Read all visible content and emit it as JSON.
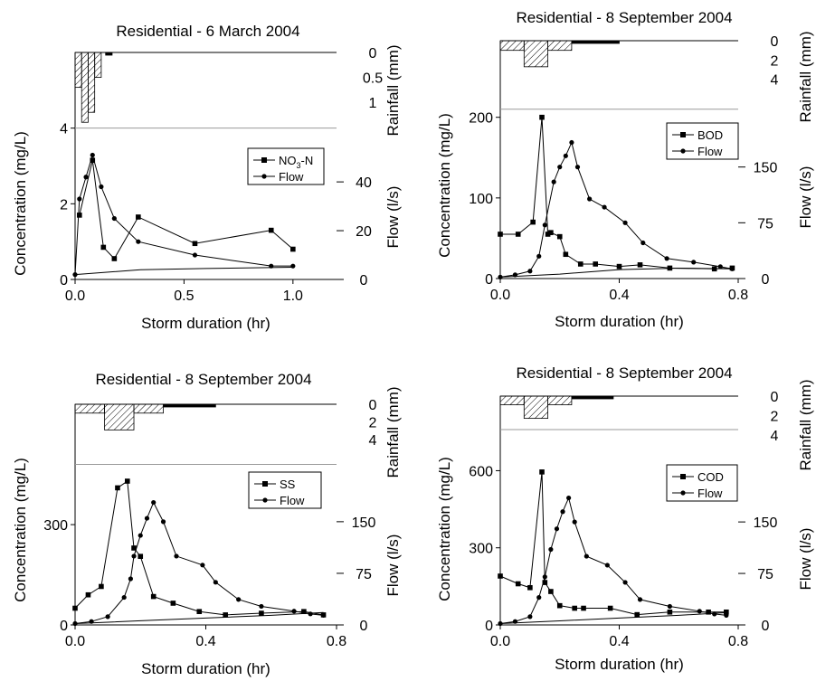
{
  "chart_data": [
    {
      "type": "line",
      "title": "Residential - 6 March 2004",
      "xlabel": "Storm duration (hr)",
      "ylabel_left": "Concentration (mg/L)",
      "ylabel_right_rain": "Rainfall (mm)",
      "ylabel_right_flow": "Flow (l/s)",
      "xlim": [
        0,
        1.2
      ],
      "xticks": [
        "0.0",
        "0.5",
        "1.0"
      ],
      "ylim_conc": [
        0,
        6
      ],
      "yticks_conc": [
        "0",
        "2",
        "4"
      ],
      "flow_ticks": [
        "0",
        "20",
        "40"
      ],
      "flow_max_on_conc_axis": 4.0,
      "flow_scale_max": 57.1,
      "rain_ticks": [
        "0",
        "0.5",
        "1"
      ],
      "rain_scale_max": 1.45,
      "legend": [
        "NO3-N",
        "Flow"
      ],
      "legend_position": "right",
      "series": [
        {
          "name": "NO3-N",
          "marker": "square",
          "x": [
            0.02,
            0.08,
            0.13,
            0.18,
            0.29,
            0.55,
            0.9,
            1.0
          ],
          "y": [
            1.7,
            3.15,
            0.85,
            0.55,
            1.65,
            0.95,
            1.3,
            0.8
          ]
        },
        {
          "name": "Flow",
          "marker": "circle",
          "x": [
            0.0,
            0.02,
            0.05,
            0.08,
            0.12,
            0.18,
            0.29,
            0.55,
            0.9,
            1.0
          ],
          "y": [
            2,
            33,
            42,
            51,
            38,
            25,
            15.5,
            10,
            5.5,
            5.5
          ]
        },
        {
          "name": "Flow-baseline",
          "marker": "none",
          "x": [
            0.0,
            0.3,
            0.6,
            1.0
          ],
          "y": [
            2,
            4,
            4.5,
            5
          ]
        }
      ],
      "rainfall": [
        {
          "x0": 0.0,
          "x1": 0.03,
          "mm": 0.7
        },
        {
          "x0": 0.03,
          "x1": 0.06,
          "mm": 1.4
        },
        {
          "x0": 0.06,
          "x1": 0.09,
          "mm": 1.2
        },
        {
          "x0": 0.09,
          "x1": 0.12,
          "mm": 0.5
        },
        {
          "x0": 0.14,
          "x1": 0.17,
          "mm": 0.15
        }
      ]
    },
    {
      "type": "line",
      "title": "Residential - 8 September 2004",
      "xlabel": "Storm duration (hr)",
      "ylabel_left": "Concentration (mg/L)",
      "ylabel_right_rain": "Rainfall (mm)",
      "ylabel_right_flow": "Flow (l/s)",
      "xlim": [
        0,
        0.8
      ],
      "xticks": [
        "0.0",
        "0.4",
        "0.8"
      ],
      "ylim_conc": [
        0,
        295
      ],
      "yticks_conc": [
        "0",
        "100",
        "200"
      ],
      "flow_ticks": [
        "0",
        "75",
        "150"
      ],
      "flow_max_on_conc_axis": 210,
      "flow_scale_max": 225,
      "rain_ticks": [
        "0",
        "2",
        "4"
      ],
      "rain_scale_max": 4.4,
      "legend": [
        "BOD",
        "Flow"
      ],
      "legend_position": "right",
      "series": [
        {
          "name": "BOD",
          "marker": "square",
          "x": [
            0.0,
            0.06,
            0.11,
            0.14,
            0.16,
            0.17,
            0.2,
            0.22,
            0.27,
            0.32,
            0.4,
            0.47,
            0.57,
            0.72,
            0.78
          ],
          "y": [
            55,
            55,
            70,
            200,
            55,
            57,
            52,
            30,
            18,
            18,
            15,
            17,
            13,
            12,
            13
          ]
        },
        {
          "name": "Flow",
          "marker": "circle",
          "x": [
            0.0,
            0.05,
            0.1,
            0.13,
            0.15,
            0.18,
            0.2,
            0.22,
            0.24,
            0.26,
            0.3,
            0.35,
            0.42,
            0.48,
            0.56,
            0.65,
            0.74,
            0.78
          ],
          "y": [
            2,
            5,
            10,
            30,
            72,
            130,
            150,
            165,
            183,
            150,
            107,
            96,
            75,
            48,
            27,
            22,
            16,
            13
          ]
        },
        {
          "name": "Flow-baseline",
          "marker": "none",
          "x": [
            0.0,
            0.2,
            0.4,
            0.6,
            0.78
          ],
          "y": [
            2,
            6,
            12,
            14,
            13
          ]
        }
      ],
      "rainfall": [
        {
          "x0": 0.0,
          "x1": 0.08,
          "mm": 1.0
        },
        {
          "x0": 0.08,
          "x1": 0.16,
          "mm": 2.7
        },
        {
          "x0": 0.16,
          "x1": 0.24,
          "mm": 1.0
        },
        {
          "x0": 0.24,
          "x1": 0.4,
          "mm": 0.2
        }
      ]
    },
    {
      "type": "line",
      "title": "Residential - 8 September 2004",
      "xlabel": "Storm duration (hr)",
      "ylabel_left": "Concentration (mg/L)",
      "ylabel_right_rain": "Rainfall (mm)",
      "ylabel_right_flow": "Flow (l/s)",
      "xlim": [
        0,
        0.8
      ],
      "xticks": [
        "0.0",
        "0.4",
        "0.8"
      ],
      "ylim_conc": [
        0,
        660
      ],
      "yticks_conc": [
        "0",
        "300"
      ],
      "flow_ticks": [
        "0",
        "75",
        "150"
      ],
      "flow_max_on_conc_axis": 480,
      "flow_scale_max": 230,
      "rain_ticks": [
        "0",
        "2",
        "4"
      ],
      "rain_scale_max": 4.6,
      "legend": [
        "SS",
        "Flow"
      ],
      "legend_position": "right",
      "series": [
        {
          "name": "SS",
          "marker": "square",
          "x": [
            0.0,
            0.04,
            0.08,
            0.13,
            0.16,
            0.18,
            0.2,
            0.24,
            0.3,
            0.38,
            0.46,
            0.57,
            0.7,
            0.76
          ],
          "y": [
            50,
            90,
            115,
            410,
            430,
            230,
            205,
            85,
            65,
            40,
            30,
            35,
            40,
            30
          ]
        },
        {
          "name": "Flow",
          "marker": "circle",
          "x": [
            0.0,
            0.05,
            0.1,
            0.15,
            0.17,
            0.18,
            0.2,
            0.22,
            0.24,
            0.27,
            0.31,
            0.39,
            0.43,
            0.5,
            0.57,
            0.67,
            0.72,
            0.76
          ],
          "y": [
            2,
            5,
            12,
            40,
            67,
            100,
            130,
            155,
            178,
            150,
            100,
            87,
            62,
            37,
            27,
            20,
            16,
            14
          ]
        },
        {
          "name": "Flow-baseline",
          "marker": "none",
          "x": [
            0.0,
            0.2,
            0.4,
            0.6,
            0.76
          ],
          "y": [
            2,
            6,
            10,
            14,
            18
          ]
        }
      ],
      "rainfall": [
        {
          "x0": 0.0,
          "x1": 0.09,
          "mm": 1.0
        },
        {
          "x0": 0.09,
          "x1": 0.18,
          "mm": 2.9
        },
        {
          "x0": 0.18,
          "x1": 0.27,
          "mm": 1.0
        },
        {
          "x0": 0.27,
          "x1": 0.43,
          "mm": 0.2
        }
      ]
    },
    {
      "type": "line",
      "title": "Residential - 8 September 2004",
      "xlabel": "Storm duration (hr)",
      "ylabel_left": "Concentration (mg/L)",
      "ylabel_right_rain": "Rainfall (mm)",
      "ylabel_right_flow": "Flow (l/s)",
      "xlim": [
        0,
        0.8
      ],
      "xticks": [
        "0.0",
        "0.4",
        "0.8"
      ],
      "ylim_conc": [
        0,
        890
      ],
      "yticks_conc": [
        "0",
        "300",
        "600"
      ],
      "flow_ticks": [
        "0",
        "75",
        "150"
      ],
      "flow_max_on_conc_axis": 760,
      "flow_scale_max": 245,
      "rain_ticks": [
        "0",
        "2",
        "4"
      ],
      "rain_scale_max": 4.3,
      "legend": [
        "COD",
        "Flow"
      ],
      "legend_position": "right",
      "series": [
        {
          "name": "COD",
          "marker": "square",
          "x": [
            0.0,
            0.06,
            0.1,
            0.14,
            0.15,
            0.17,
            0.2,
            0.25,
            0.28,
            0.37,
            0.46,
            0.57,
            0.7,
            0.76
          ],
          "y": [
            190,
            160,
            145,
            595,
            165,
            130,
            75,
            65,
            65,
            65,
            40,
            50,
            50,
            50
          ]
        },
        {
          "name": "Flow",
          "marker": "circle",
          "x": [
            0.0,
            0.05,
            0.1,
            0.13,
            0.15,
            0.17,
            0.19,
            0.21,
            0.23,
            0.25,
            0.29,
            0.36,
            0.42,
            0.47,
            0.57,
            0.67,
            0.72,
            0.76
          ],
          "y": [
            2,
            5,
            12,
            40,
            70,
            110,
            140,
            165,
            185,
            150,
            100,
            87,
            62,
            37,
            27,
            20,
            16,
            14
          ]
        },
        {
          "name": "Flow-baseline",
          "marker": "none",
          "x": [
            0.0,
            0.2,
            0.4,
            0.6,
            0.76
          ],
          "y": [
            2,
            6,
            10,
            14,
            18
          ]
        }
      ],
      "rainfall": [
        {
          "x0": 0.0,
          "x1": 0.08,
          "mm": 0.9
        },
        {
          "x0": 0.08,
          "x1": 0.16,
          "mm": 2.3
        },
        {
          "x0": 0.16,
          "x1": 0.24,
          "mm": 0.9
        },
        {
          "x0": 0.24,
          "x1": 0.38,
          "mm": 0.15
        }
      ]
    }
  ]
}
